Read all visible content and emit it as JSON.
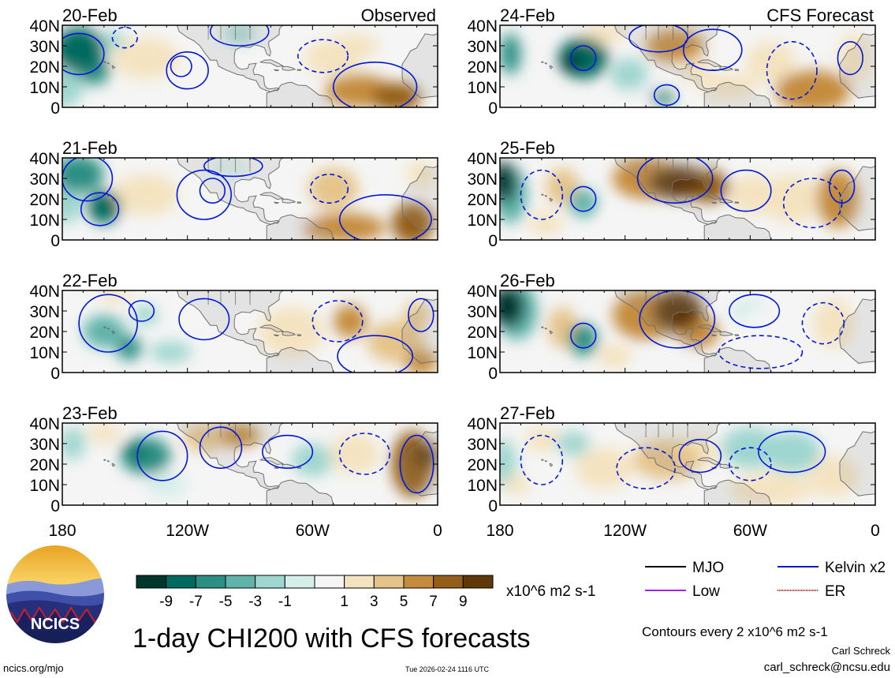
{
  "title": "1-day CHI200 with CFS forecasts",
  "labels": {
    "observed": "Observed",
    "forecast": "CFS Forecast",
    "units": "x10^6 m2 s-1",
    "contours": "Contours every 2 x10^6 m2 s-1",
    "author": "Carl Schreck",
    "email": "carl_schreck@ncsu.edu",
    "website": "ncics.org/mjo",
    "timestamp": "Tue 2026-02-24 1116 UTC",
    "logo_text": "NCICS"
  },
  "colors": {
    "frame": "#000000",
    "contour": "#0018d8",
    "land_outline": "#707070",
    "land_fill": "#c8c8c8"
  },
  "chart_data": {
    "type": "heatmap",
    "variable": "200-hPa velocity potential anomaly (CHI200)",
    "lat_ticks": [
      "40N",
      "30N",
      "20N",
      "10N",
      "0"
    ],
    "lat_values": [
      40,
      30,
      20,
      10,
      0
    ],
    "lon_ticks": [
      "180",
      "120W",
      "60W",
      "0"
    ],
    "lon_values": [
      -180,
      -120,
      -60,
      0
    ],
    "xlim": [
      -180,
      0
    ],
    "ylim": [
      0,
      40
    ],
    "colorbar": {
      "levels": [
        -11,
        -9,
        -7,
        -5,
        -3,
        -1,
        1,
        3,
        5,
        7,
        9,
        11
      ],
      "labels": [
        "-9",
        "-7",
        "-5",
        "-3",
        "-1",
        "1",
        "3",
        "5",
        "7",
        "9"
      ],
      "colors": [
        "#00362d",
        "#016a5e",
        "#2b8f84",
        "#5fb3aa",
        "#9fd6cf",
        "#d5eeea",
        "#f5f5f5",
        "#f4e3c0",
        "#e5c48a",
        "#c58c3e",
        "#955e18",
        "#5e3808"
      ]
    },
    "legend": [
      {
        "name": "MJO",
        "color": "#000000"
      },
      {
        "name": "Kelvin x2",
        "color": "#0018d8"
      },
      {
        "name": "Low",
        "color": "#a020f0"
      },
      {
        "name": "ER",
        "color": "#e01010"
      }
    ],
    "panels": [
      {
        "date": "20-Feb",
        "source": "observed",
        "blobs": [
          [
            -172,
            28,
            12,
            11,
            -9
          ],
          [
            -165,
            18,
            8,
            7,
            -7
          ],
          [
            -156,
            32,
            7,
            5,
            -3
          ],
          [
            -180,
            10,
            10,
            10,
            -3
          ],
          [
            -140,
            24,
            16,
            10,
            3
          ],
          [
            -118,
            35,
            8,
            6,
            1
          ],
          [
            -95,
            36,
            8,
            5,
            -3
          ],
          [
            -50,
            24,
            14,
            9,
            3
          ],
          [
            -38,
            8,
            16,
            8,
            7
          ],
          [
            -20,
            5,
            12,
            7,
            9
          ],
          [
            -40,
            30,
            12,
            6,
            3
          ],
          [
            -8,
            35,
            8,
            7,
            1
          ]
        ],
        "contours": [
          [
            -172,
            26,
            12,
            10,
            1
          ],
          [
            -120,
            18,
            10,
            9,
            1
          ],
          [
            -123,
            20,
            5,
            5,
            1
          ],
          [
            -95,
            37,
            14,
            7,
            1
          ],
          [
            -55,
            25,
            12,
            8,
            0
          ],
          [
            -30,
            10,
            20,
            12,
            1
          ],
          [
            -150,
            34,
            6,
            5,
            0
          ]
        ]
      },
      {
        "date": "21-Feb",
        "source": "observed",
        "blobs": [
          [
            -172,
            32,
            12,
            9,
            -7
          ],
          [
            -160,
            16,
            8,
            8,
            -9
          ],
          [
            -178,
            20,
            8,
            12,
            -3
          ],
          [
            -140,
            22,
            16,
            10,
            3
          ],
          [
            -110,
            12,
            14,
            6,
            1
          ],
          [
            -70,
            12,
            14,
            7,
            1
          ],
          [
            -50,
            25,
            12,
            10,
            5
          ],
          [
            -45,
            6,
            20,
            7,
            7
          ],
          [
            -12,
            8,
            10,
            10,
            9
          ],
          [
            -100,
            36,
            10,
            5,
            -1
          ],
          [
            -8,
            32,
            7,
            7,
            3
          ]
        ],
        "contours": [
          [
            -168,
            30,
            12,
            11,
            1
          ],
          [
            -112,
            22,
            13,
            12,
            1
          ],
          [
            -108,
            24,
            6,
            6,
            1
          ],
          [
            -98,
            36,
            14,
            5,
            1
          ],
          [
            -52,
            25,
            9,
            7,
            0
          ],
          [
            -25,
            10,
            22,
            12,
            1
          ],
          [
            -162,
            15,
            9,
            8,
            1
          ]
        ]
      },
      {
        "date": "22-Feb",
        "source": "observed",
        "blobs": [
          [
            -160,
            20,
            10,
            8,
            -5
          ],
          [
            -148,
            12,
            6,
            6,
            -7
          ],
          [
            -140,
            28,
            6,
            5,
            -3
          ],
          [
            -155,
            38,
            8,
            4,
            3
          ],
          [
            -120,
            34,
            8,
            5,
            1
          ],
          [
            -128,
            10,
            10,
            5,
            -3
          ],
          [
            -70,
            20,
            16,
            12,
            3
          ],
          [
            -42,
            25,
            8,
            8,
            7
          ],
          [
            -20,
            15,
            14,
            10,
            5
          ],
          [
            -10,
            28,
            6,
            7,
            5
          ],
          [
            -8,
            5,
            8,
            6,
            7
          ],
          [
            -90,
            36,
            8,
            5,
            1
          ]
        ],
        "contours": [
          [
            -158,
            24,
            14,
            14,
            1
          ],
          [
            -112,
            26,
            12,
            10,
            1
          ],
          [
            -48,
            25,
            12,
            10,
            0
          ],
          [
            -30,
            8,
            18,
            10,
            1
          ],
          [
            -8,
            28,
            6,
            8,
            1
          ],
          [
            -142,
            30,
            6,
            5,
            1
          ]
        ]
      },
      {
        "date": "23-Feb",
        "source": "observed",
        "blobs": [
          [
            -140,
            24,
            12,
            9,
            -7
          ],
          [
            -145,
            26,
            5,
            4,
            -9
          ],
          [
            -160,
            35,
            8,
            5,
            3
          ],
          [
            -175,
            30,
            6,
            8,
            -3
          ],
          [
            -112,
            33,
            10,
            7,
            5
          ],
          [
            -95,
            34,
            10,
            6,
            7
          ],
          [
            -90,
            14,
            18,
            8,
            1
          ],
          [
            -60,
            22,
            10,
            8,
            -3
          ],
          [
            -40,
            25,
            12,
            10,
            3
          ],
          [
            -12,
            20,
            10,
            16,
            9
          ],
          [
            -6,
            24,
            6,
            6,
            11
          ],
          [
            -130,
            10,
            10,
            6,
            -1
          ]
        ],
        "contours": [
          [
            -132,
            24,
            12,
            12,
            1
          ],
          [
            -104,
            28,
            10,
            10,
            1
          ],
          [
            -72,
            26,
            12,
            8,
            1
          ],
          [
            -35,
            25,
            12,
            10,
            0
          ],
          [
            -10,
            20,
            8,
            14,
            1
          ]
        ]
      },
      {
        "date": "24-Feb",
        "source": "forecast",
        "blobs": [
          [
            -140,
            24,
            12,
            10,
            -9
          ],
          [
            -146,
            22,
            5,
            5,
            -11
          ],
          [
            -175,
            26,
            5,
            10,
            -7
          ],
          [
            -118,
            16,
            9,
            8,
            -3
          ],
          [
            -130,
            36,
            10,
            5,
            3
          ],
          [
            -96,
            30,
            14,
            8,
            7
          ],
          [
            -86,
            18,
            8,
            6,
            3
          ],
          [
            -110,
            8,
            12,
            6,
            1
          ],
          [
            -70,
            10,
            14,
            6,
            3
          ],
          [
            -50,
            22,
            12,
            10,
            3
          ],
          [
            -30,
            8,
            18,
            10,
            7
          ],
          [
            -10,
            24,
            8,
            12,
            3
          ],
          [
            -102,
            5,
            6,
            4,
            -7
          ]
        ],
        "contours": [
          [
            -140,
            24,
            6,
            6,
            1
          ],
          [
            -104,
            34,
            14,
            7,
            1
          ],
          [
            -78,
            28,
            14,
            10,
            1
          ],
          [
            -100,
            6,
            6,
            5,
            1
          ],
          [
            -40,
            18,
            12,
            14,
            0
          ],
          [
            -12,
            24,
            6,
            8,
            1
          ]
        ]
      },
      {
        "date": "25-Feb",
        "source": "forecast",
        "blobs": [
          [
            -178,
            28,
            6,
            10,
            -11
          ],
          [
            -175,
            22,
            8,
            14,
            -5
          ],
          [
            -150,
            26,
            8,
            9,
            5
          ],
          [
            -140,
            18,
            7,
            7,
            -5
          ],
          [
            -110,
            30,
            16,
            10,
            7
          ],
          [
            -95,
            28,
            14,
            8,
            11
          ],
          [
            -80,
            26,
            10,
            8,
            9
          ],
          [
            -58,
            22,
            12,
            10,
            3
          ],
          [
            -40,
            20,
            14,
            12,
            3
          ],
          [
            -18,
            20,
            10,
            14,
            7
          ],
          [
            -158,
            8,
            8,
            6,
            3
          ],
          [
            -122,
            8,
            8,
            5,
            1
          ]
        ],
        "contours": [
          [
            -96,
            30,
            18,
            12,
            1
          ],
          [
            -62,
            24,
            12,
            10,
            1
          ],
          [
            -140,
            20,
            6,
            6,
            1
          ],
          [
            -16,
            26,
            6,
            8,
            1
          ],
          [
            -160,
            22,
            10,
            12,
            0
          ],
          [
            -30,
            18,
            14,
            12,
            0
          ]
        ]
      },
      {
        "date": "26-Feb",
        "source": "forecast",
        "blobs": [
          [
            -176,
            32,
            8,
            10,
            -11
          ],
          [
            -172,
            30,
            10,
            14,
            -5
          ],
          [
            -150,
            22,
            7,
            10,
            5
          ],
          [
            -140,
            16,
            7,
            8,
            -7
          ],
          [
            -110,
            28,
            16,
            12,
            7
          ],
          [
            -95,
            30,
            12,
            10,
            11
          ],
          [
            -85,
            20,
            10,
            8,
            7
          ],
          [
            -60,
            30,
            10,
            6,
            -1
          ],
          [
            -50,
            22,
            14,
            10,
            1
          ],
          [
            -20,
            24,
            10,
            12,
            3
          ],
          [
            -100,
            6,
            12,
            5,
            1
          ],
          [
            -125,
            8,
            8,
            6,
            3
          ]
        ],
        "contours": [
          [
            -95,
            26,
            18,
            14,
            1
          ],
          [
            -58,
            30,
            12,
            8,
            1
          ],
          [
            -140,
            18,
            6,
            6,
            1
          ],
          [
            -55,
            10,
            20,
            8,
            0
          ],
          [
            -25,
            24,
            10,
            10,
            0
          ]
        ]
      },
      {
        "date": "27-Feb",
        "source": "forecast",
        "blobs": [
          [
            -178,
            20,
            6,
            12,
            -3
          ],
          [
            -172,
            10,
            6,
            5,
            3
          ],
          [
            -145,
            30,
            8,
            6,
            -3
          ],
          [
            -130,
            18,
            14,
            10,
            3
          ],
          [
            -100,
            22,
            16,
            10,
            5
          ],
          [
            -85,
            26,
            10,
            8,
            3
          ],
          [
            -60,
            28,
            14,
            10,
            -3
          ],
          [
            -40,
            26,
            14,
            10,
            -3
          ],
          [
            -50,
            8,
            20,
            8,
            3
          ],
          [
            -20,
            14,
            12,
            10,
            3
          ],
          [
            -160,
            32,
            8,
            6,
            3
          ],
          [
            -110,
            8,
            10,
            6,
            1
          ]
        ],
        "contours": [
          [
            -84,
            24,
            10,
            8,
            1
          ],
          [
            -40,
            26,
            16,
            10,
            1
          ],
          [
            -160,
            22,
            10,
            12,
            0
          ],
          [
            -110,
            18,
            14,
            10,
            0
          ],
          [
            -60,
            20,
            10,
            8,
            0
          ]
        ]
      }
    ]
  }
}
